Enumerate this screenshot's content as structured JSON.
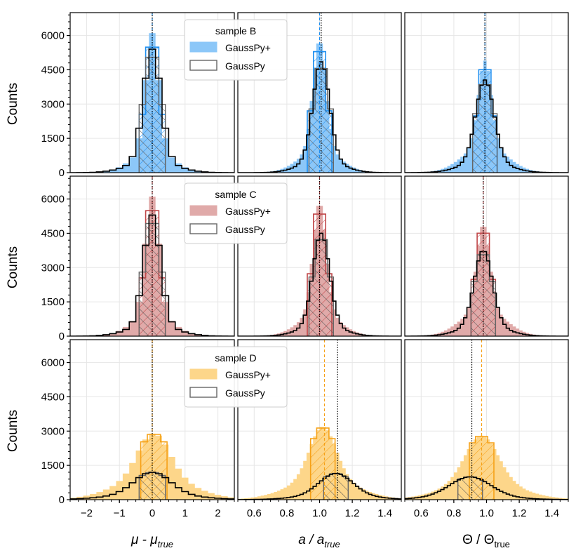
{
  "ylabel": "Counts",
  "xlabels": {
    "mu": {
      "base": "μ - μ",
      "sub": "true"
    },
    "amp": {
      "base": "a / a",
      "sub": "true"
    },
    "theta": {
      "base": "Θ / Θ",
      "sub": "true"
    }
  },
  "x_tick_labels": {
    "mu": [
      "−2",
      "−1",
      "0",
      "1",
      "2"
    ],
    "amp": [
      "0.6",
      "0.8",
      "1.0",
      "1.2",
      "1.4"
    ],
    "theta": [
      "0.6",
      "0.8",
      "1.0",
      "1.2",
      "1.4"
    ]
  },
  "y_tick_labels": [
    "0",
    "1500",
    "3000",
    "4500",
    "6000"
  ],
  "chart_data": {
    "type": "histogram",
    "layout": "3 rows (samples) × 3 columns (parameters), shared axes",
    "ylabel": "Counts",
    "ylim": [
      0,
      7000
    ],
    "y_ticks": [
      0,
      1500,
      3000,
      4500,
      6000
    ],
    "columns": [
      {
        "key": "mu",
        "xlabel": "μ - μ_true",
        "xlim": [
          -2.5,
          2.5
        ],
        "x_ticks": [
          -2,
          -1,
          0,
          1,
          2
        ],
        "center": 0,
        "width": 0.8,
        "tail": 0.12,
        "bin": 0.2
      },
      {
        "key": "amp",
        "xlabel": "a / a_true",
        "xlim": [
          0.5,
          1.5
        ],
        "x_ticks": [
          0.6,
          0.8,
          1.0,
          1.2,
          1.4
        ],
        "center": 1.0,
        "width": 0.15,
        "tail": 0.02,
        "bin": 0.02
      },
      {
        "key": "theta",
        "xlabel": "Θ / Θ_true",
        "xlim": [
          0.5,
          1.5
        ],
        "x_ticks": [
          0.6,
          0.8,
          1.0,
          1.2,
          1.4
        ],
        "center": 1.0,
        "width": 0.15,
        "tail": 0.02,
        "bin": 0.02
      }
    ],
    "rows": [
      {
        "sample": "sample B",
        "color": "#1f8ff0",
        "fill": "#8cc7f8",
        "legend": [
          "GaussPy+",
          "GaussPy"
        ],
        "panels": [
          {
            "plus": {
              "peak": 6100,
              "mode": 0.0,
              "sigma": 0.2,
              "tail_frac": 0.17,
              "tail_sigma": 0.58
            },
            "gp": {
              "peak": 5400,
              "mode": 0.0,
              "sigma": 0.26,
              "tail_frac": 0.1,
              "tail_sigma": 0.68
            },
            "lines": {
              "plus": 0.0,
              "gp": 0.0
            }
          },
          {
            "plus": {
              "peak": 5800,
              "mode": 1.0,
              "sigma": 0.04,
              "tail_frac": 0.18,
              "tail_sigma": 0.12
            },
            "gp": {
              "peak": 4850,
              "mode": 1.01,
              "sigma": 0.05,
              "tail_frac": 0.12,
              "tail_sigma": 0.12
            },
            "lines": {
              "plus": 1.0,
              "gp": 1.01
            }
          },
          {
            "plus": {
              "peak": 4900,
              "mode": 0.99,
              "sigma": 0.04,
              "tail_frac": 0.25,
              "tail_sigma": 0.13
            },
            "gp": {
              "peak": 4050,
              "mode": 0.99,
              "sigma": 0.055,
              "tail_frac": 0.14,
              "tail_sigma": 0.13
            },
            "lines": {
              "plus": 0.99,
              "gp": 0.99
            }
          }
        ]
      },
      {
        "sample": "sample C",
        "color": "#c0484a",
        "fill": "#e0aaa9",
        "legend": [
          "GaussPy+",
          "GaussPy"
        ],
        "panels": [
          {
            "plus": {
              "peak": 6100,
              "mode": 0.0,
              "sigma": 0.2,
              "tail_frac": 0.17,
              "tail_sigma": 0.58
            },
            "gp": {
              "peak": 5300,
              "mode": 0.0,
              "sigma": 0.25,
              "tail_frac": 0.1,
              "tail_sigma": 0.68
            },
            "lines": {
              "plus": 0.0,
              "gp": 0.0
            }
          },
          {
            "plus": {
              "peak": 5850,
              "mode": 1.0,
              "sigma": 0.04,
              "tail_frac": 0.18,
              "tail_sigma": 0.12
            },
            "gp": {
              "peak": 4500,
              "mode": 1.01,
              "sigma": 0.05,
              "tail_frac": 0.12,
              "tail_sigma": 0.12
            },
            "lines": {
              "plus": 1.0,
              "gp": 1.0
            }
          },
          {
            "plus": {
              "peak": 4900,
              "mode": 0.98,
              "sigma": 0.04,
              "tail_frac": 0.25,
              "tail_sigma": 0.13
            },
            "gp": {
              "peak": 3750,
              "mode": 0.98,
              "sigma": 0.055,
              "tail_frac": 0.14,
              "tail_sigma": 0.13
            },
            "lines": {
              "plus": 0.98,
              "gp": 0.98
            }
          }
        ]
      },
      {
        "sample": "sample D",
        "color": "#f6a117",
        "fill": "#fdd68a",
        "legend": [
          "GaussPy+",
          "GaussPy"
        ],
        "panels": [
          {
            "plus": {
              "peak": 2900,
              "mode": 0.05,
              "sigma": 0.48,
              "tail_frac": 0.35,
              "tail_sigma": 1.1
            },
            "gp": {
              "peak": 1200,
              "mode": 0.0,
              "sigma": 0.55,
              "tail_frac": 0.2,
              "tail_sigma": 1.2
            },
            "lines": {
              "plus": 0.0,
              "gp": 0.0
            }
          },
          {
            "plus": {
              "peak": 3200,
              "mode": 1.02,
              "sigma": 0.08,
              "tail_frac": 0.3,
              "tail_sigma": 0.2
            },
            "gp": {
              "peak": 1150,
              "mode": 1.1,
              "sigma": 0.1,
              "tail_frac": 0.2,
              "tail_sigma": 0.2
            },
            "lines": {
              "plus": 1.03,
              "gp": 1.11
            }
          },
          {
            "plus": {
              "peak": 2800,
              "mode": 0.97,
              "sigma": 0.1,
              "tail_frac": 0.3,
              "tail_sigma": 0.22
            },
            "gp": {
              "peak": 1000,
              "mode": 0.9,
              "sigma": 0.12,
              "tail_frac": 0.2,
              "tail_sigma": 0.22
            },
            "lines": {
              "plus": 0.97,
              "gp": 0.91
            }
          }
        ]
      }
    ]
  }
}
